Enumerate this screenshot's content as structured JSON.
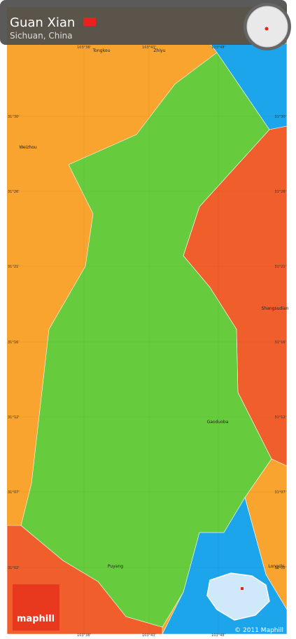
{
  "header": {
    "title": "Guan Xian",
    "subtitle": "Sichuan, China"
  },
  "places": [
    "Tongkou",
    "Zhiyu",
    "Weizhou",
    "Shangsudian",
    "Gaoduoba",
    "Puyang",
    "Longchi"
  ],
  "coordinates": {
    "longitude": [
      "103°38'",
      "103°43'",
      "103°48'"
    ],
    "latitude": [
      "31°30'",
      "31°26'",
      "31°21'",
      "31°16'",
      "31°12'",
      "31°07'",
      "31°02'"
    ]
  },
  "logo": "maphill",
  "copyright": "© 2011 Maphill"
}
